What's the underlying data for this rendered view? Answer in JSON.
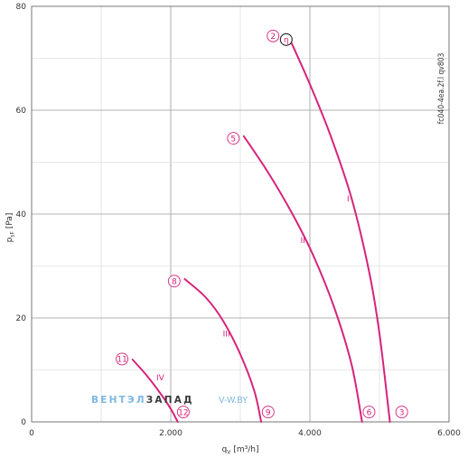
{
  "chart_data": {
    "type": "line",
    "xlabel": "q",
    "xlabel_sub": "V",
    "xlabel_unit": "[m³/h]",
    "ylabel": "p",
    "ylabel_sub": "sF",
    "ylabel_unit": "[Pa]",
    "xlim": [
      0,
      6000
    ],
    "ylim": [
      0,
      80
    ],
    "x_ticks": [
      0,
      2000,
      4000,
      6000
    ],
    "x_tick_labels": [
      "0",
      "2.000",
      "4.000",
      "6.000"
    ],
    "y_ticks": [
      0,
      20,
      40,
      60,
      80
    ],
    "y_tick_labels": [
      "0",
      "20",
      "40",
      "60",
      "80"
    ],
    "grid": true,
    "model_code": "fc040-4ea.2f.l qv803",
    "series_color": "#d6247a",
    "series": [
      {
        "name": "I",
        "label_at": [
          4550,
          43
        ],
        "x": [
          3700,
          4000,
          4300,
          4600,
          4850,
          5000,
          5150
        ],
        "y": [
          74,
          65,
          55,
          43,
          29,
          17,
          0
        ]
      },
      {
        "name": "II",
        "label_at": [
          3900,
          35
        ],
        "x": [
          3050,
          3400,
          3750,
          4050,
          4350,
          4600,
          4750
        ],
        "y": [
          55,
          48,
          40,
          32,
          22,
          11,
          0
        ]
      },
      {
        "name": "III",
        "label_at": [
          2800,
          17
        ],
        "x": [
          2200,
          2500,
          2750,
          3000,
          3200,
          3300
        ],
        "y": [
          27.5,
          24,
          19.5,
          13,
          6,
          0
        ]
      },
      {
        "name": "IV",
        "label_at": [
          1850,
          8.5
        ],
        "x": [
          1450,
          1650,
          1850,
          2000,
          2100
        ],
        "y": [
          12,
          9,
          5.5,
          2.5,
          0
        ]
      }
    ],
    "markers": [
      {
        "label": "2",
        "x": 3470,
        "y": 74.3,
        "style": "circle"
      },
      {
        "label": "η",
        "x": 3660,
        "y": 73.6,
        "style": "eta"
      },
      {
        "label": "3",
        "x": 5320,
        "y": 1.9,
        "style": "circle"
      },
      {
        "label": "5",
        "x": 2900,
        "y": 54.6,
        "style": "circle"
      },
      {
        "label": "6",
        "x": 4850,
        "y": 1.9,
        "style": "circle"
      },
      {
        "label": "8",
        "x": 2050,
        "y": 27.1,
        "style": "circle"
      },
      {
        "label": "9",
        "x": 3400,
        "y": 1.9,
        "style": "circle"
      },
      {
        "label": "11",
        "x": 1300,
        "y": 12.1,
        "style": "circle"
      },
      {
        "label": "12",
        "x": 2180,
        "y": 1.9,
        "style": "circle"
      }
    ]
  },
  "watermark": {
    "part1": "ВЕНТЭЛ",
    "part2": "ЗАПАД",
    "part3": "V-W.BY"
  }
}
